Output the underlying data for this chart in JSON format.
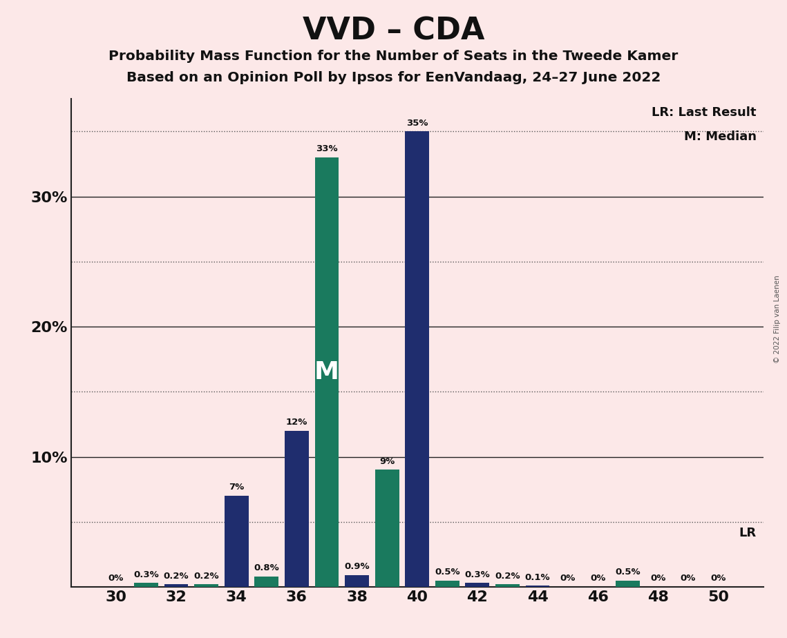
{
  "title": "VVD – CDA",
  "subtitle1": "Probability Mass Function for the Number of Seats in the Tweede Kamer",
  "subtitle2": "Based on an Opinion Poll by Ipsos for EenVandaag, 24–27 June 2022",
  "copyright": "© 2022 Filip van Laenen",
  "background_color": "#fce8e8",
  "seats": [
    30,
    31,
    32,
    33,
    34,
    35,
    36,
    37,
    38,
    39,
    40,
    41,
    42,
    43,
    44,
    45,
    46,
    47,
    48,
    49,
    50
  ],
  "values": [
    0.0,
    0.3,
    0.2,
    0.2,
    7.0,
    0.8,
    12.0,
    33.0,
    0.9,
    9.0,
    35.0,
    0.5,
    0.3,
    0.2,
    0.1,
    0.0,
    0.0,
    0.5,
    0.0,
    0.0,
    0.0
  ],
  "colors": [
    "#1f2d6e",
    "#1a7a5e",
    "#1f2d6e",
    "#1a7a5e",
    "#1f2d6e",
    "#1a7a5e",
    "#1f2d6e",
    "#1a7a5e",
    "#1f2d6e",
    "#1a7a5e",
    "#1f2d6e",
    "#1a7a5e",
    "#1f2d6e",
    "#1a7a5e",
    "#1f2d6e",
    "#1a7a5e",
    "#1f2d6e",
    "#1a7a5e",
    "#1f2d6e",
    "#1a7a5e",
    "#1f2d6e"
  ],
  "navy_color": "#1f2d6e",
  "teal_color": "#1a7a5e",
  "lr_value": 5.0,
  "median_seat": 37,
  "ylim_max": 37.5,
  "solid_gridlines": [
    10,
    20,
    30
  ],
  "dotted_gridlines": [
    5,
    15,
    25,
    35
  ],
  "ytick_positions": [
    10,
    20,
    30
  ],
  "ytick_labels": [
    "10%",
    "20%",
    "30%"
  ],
  "xticks": [
    30,
    32,
    34,
    36,
    38,
    40,
    42,
    44,
    46,
    48,
    50
  ],
  "bar_width": 0.8,
  "legend_lr_result": "LR: Last Result",
  "legend_median": "M: Median",
  "legend_lr": "LR"
}
